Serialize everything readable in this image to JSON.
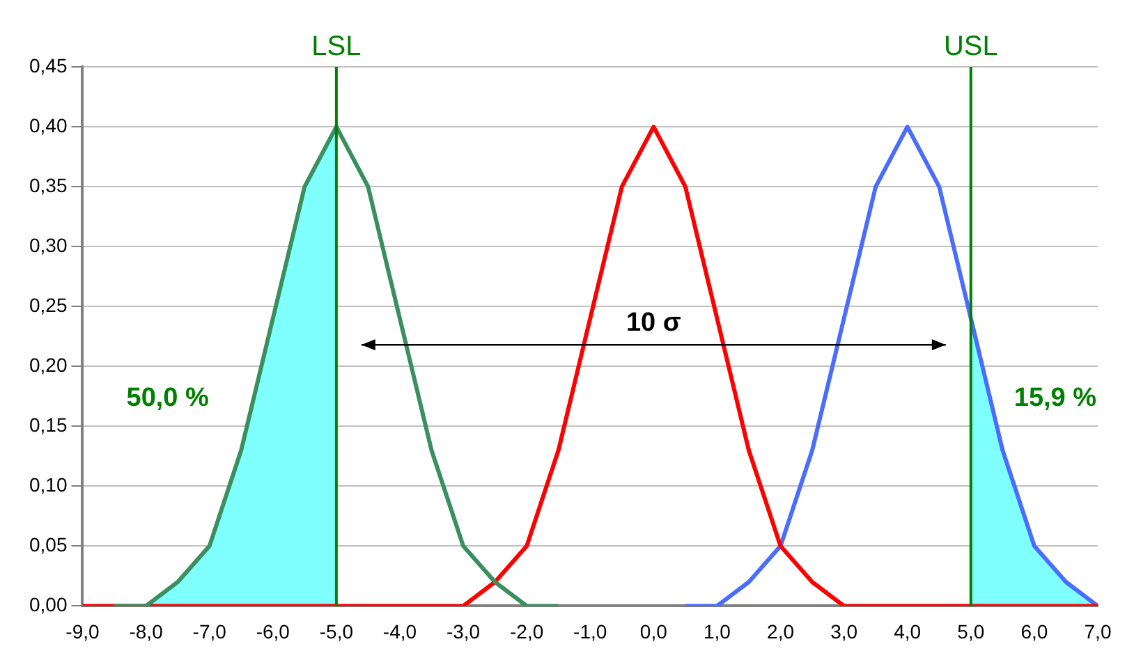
{
  "chart_data": {
    "type": "line",
    "xlim": [
      -9,
      7
    ],
    "ylim": [
      0,
      0.45
    ],
    "xticks": [
      {
        "value": -9,
        "label": "-9,0"
      },
      {
        "value": -8,
        "label": "-8,0"
      },
      {
        "value": -7,
        "label": "-7,0"
      },
      {
        "value": -6,
        "label": "-6,0"
      },
      {
        "value": -5,
        "label": "-5,0"
      },
      {
        "value": -4,
        "label": "-4,0"
      },
      {
        "value": -3,
        "label": "-3,0"
      },
      {
        "value": -2,
        "label": "-2,0"
      },
      {
        "value": -1,
        "label": "-1,0"
      },
      {
        "value": 0,
        "label": "0,0"
      },
      {
        "value": 1,
        "label": "1,0"
      },
      {
        "value": 2,
        "label": "2,0"
      },
      {
        "value": 3,
        "label": "3,0"
      },
      {
        "value": 4,
        "label": "4,0"
      },
      {
        "value": 5,
        "label": "5,0"
      },
      {
        "value": 6,
        "label": "6,0"
      },
      {
        "value": 7,
        "label": "7,0"
      }
    ],
    "yticks": [
      {
        "value": 0,
        "label": "0,00"
      },
      {
        "value": 0.05,
        "label": "0,05"
      },
      {
        "value": 0.1,
        "label": "0,10"
      },
      {
        "value": 0.15,
        "label": "0,15"
      },
      {
        "value": 0.2,
        "label": "0,20"
      },
      {
        "value": 0.25,
        "label": "0,25"
      },
      {
        "value": 0.3,
        "label": "0,30"
      },
      {
        "value": 0.35,
        "label": "0,35"
      },
      {
        "value": 0.4,
        "label": "0,40"
      },
      {
        "value": 0.45,
        "label": "0,45"
      }
    ],
    "grid": "y",
    "legend": false,
    "marker": "none",
    "line_style": "solid",
    "series": [
      {
        "type": "area",
        "color": "#80ffff",
        "x": [
          -8.5,
          -8,
          -7.5,
          -7,
          -6.5,
          -6,
          -5.5,
          -5
        ],
        "values": [
          0.0,
          0.0,
          0.02,
          0.05,
          0.13,
          0.24,
          0.35,
          0.4
        ]
      },
      {
        "type": "area",
        "color": "#80ffff",
        "x": [
          5,
          5.5,
          6,
          6.5,
          7
        ],
        "values": [
          0.24,
          0.13,
          0.05,
          0.02,
          0.0
        ]
      },
      {
        "color": "#3a8f5f",
        "x": [
          -8.5,
          -8,
          -7.5,
          -7,
          -6.5,
          -6,
          -5.5,
          -5,
          -4.5,
          -4,
          -3.5,
          -3,
          -2.5,
          -2,
          -1.5
        ],
        "values": [
          0.0,
          0.0,
          0.02,
          0.05,
          0.13,
          0.24,
          0.35,
          0.4,
          0.35,
          0.24,
          0.13,
          0.05,
          0.02,
          0.0,
          0.0
        ]
      },
      {
        "color": "#ff0000",
        "x": [
          -9,
          -8.5,
          -8,
          -7.5,
          -7,
          -6.5,
          -6,
          -5.5,
          -5,
          -4.5,
          -4,
          -3.5,
          -3,
          -2.5,
          -2,
          -1.5,
          -1,
          -0.5,
          0,
          0.5,
          1,
          1.5,
          2,
          2.5,
          3,
          3.5,
          4,
          4.5,
          5,
          5.5,
          6,
          6.5,
          7
        ],
        "values": [
          0,
          0,
          0,
          0,
          0,
          0,
          0,
          0,
          0,
          0,
          0,
          0,
          0.0,
          0.02,
          0.05,
          0.13,
          0.24,
          0.35,
          0.4,
          0.35,
          0.24,
          0.13,
          0.05,
          0.02,
          0.0,
          0,
          0,
          0,
          0,
          0,
          0,
          0,
          0
        ]
      },
      {
        "color": "#4a6cff",
        "x": [
          0.5,
          1,
          1.5,
          2,
          2.5,
          3,
          3.5,
          4,
          4.5,
          5,
          5.5,
          6,
          6.5,
          7
        ],
        "values": [
          0.0,
          0.0,
          0.02,
          0.05,
          0.13,
          0.24,
          0.35,
          0.4,
          0.35,
          0.24,
          0.13,
          0.05,
          0.02,
          0.0
        ]
      }
    ],
    "ref_lines": [
      {
        "axis": "x",
        "value": -5,
        "label": "LSL",
        "color": "#008000"
      },
      {
        "axis": "x",
        "value": 5,
        "label": "USL",
        "color": "#008000"
      }
    ],
    "annotations": [
      "10 σ",
      "50,0 %",
      "15,9 %"
    ]
  }
}
